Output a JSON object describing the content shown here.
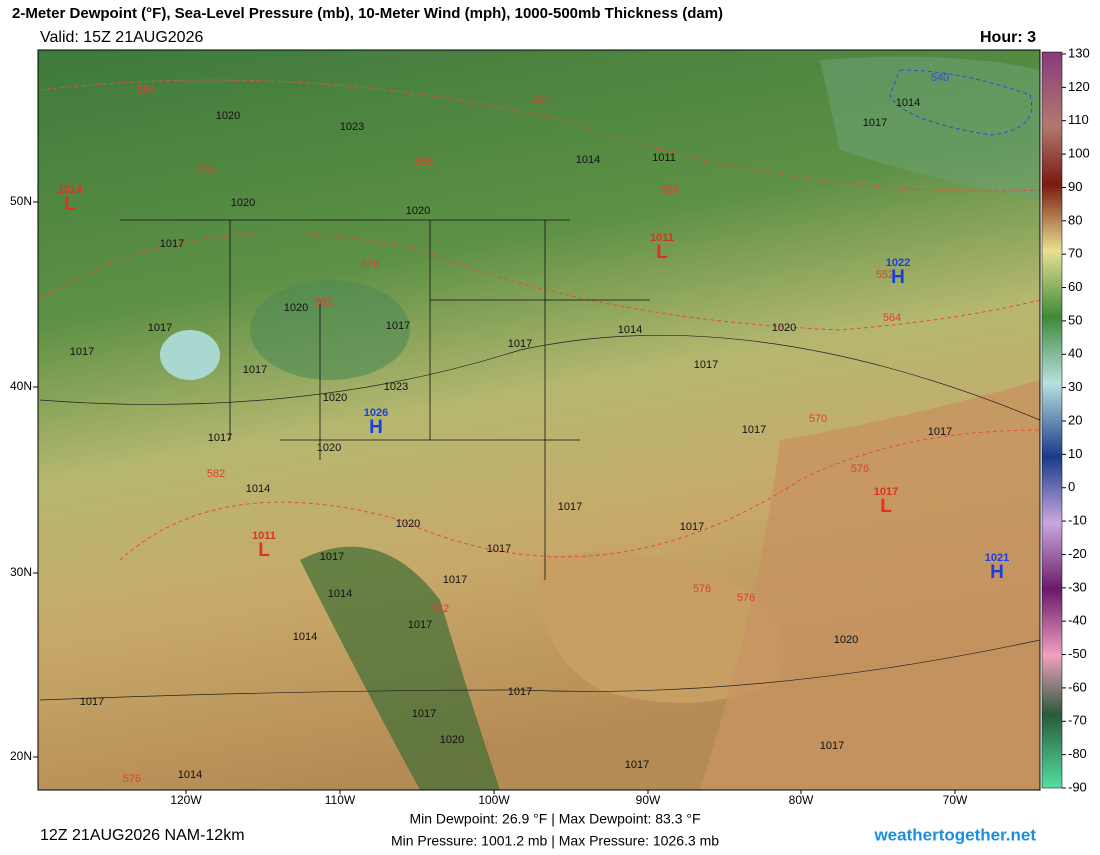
{
  "header": {
    "title": "2-Meter Dewpoint (°F), Sea-Level Pressure (mb), 10-Meter Wind (mph), 1000-500mb Thickness (dam)",
    "valid": "Valid: 15Z 21AUG2026",
    "hour": "Hour: 3"
  },
  "map": {
    "lat_labels": [
      "50N",
      "40N",
      "30N",
      "20N"
    ],
    "lon_labels": [
      "120W",
      "110W",
      "100W",
      "90W",
      "80W",
      "70W"
    ],
    "pressure_centers": [
      {
        "letter": "L",
        "value": "1014"
      },
      {
        "letter": "L",
        "value": "1011"
      },
      {
        "letter": "L",
        "value": "1011"
      },
      {
        "letter": "H",
        "value": "1022"
      },
      {
        "letter": "H",
        "value": "1026"
      },
      {
        "letter": "L",
        "value": "1017"
      },
      {
        "letter": "H",
        "value": "1021"
      }
    ],
    "isobar_labels": [
      "1020",
      "1023",
      "1014",
      "1011",
      "1017",
      "1020",
      "1017",
      "1020",
      "1020",
      "1017",
      "1017",
      "1017",
      "1014",
      "1017",
      "1017",
      "1020",
      "1023",
      "1020",
      "1017",
      "1017",
      "1014",
      "1020",
      "1017",
      "1017",
      "1017",
      "1017",
      "1020",
      "1017",
      "1017",
      "1017",
      "1014",
      "1014",
      "1017",
      "1020",
      "1017",
      "1017",
      "1017",
      "1020",
      "1014",
      "1017",
      "1017",
      "1014"
    ],
    "thickness_labels": [
      "564",
      "552",
      "558",
      "576",
      "558",
      "576",
      "582",
      "564",
      "552",
      "570",
      "576",
      "582",
      "582",
      "576",
      "576",
      "576",
      "540"
    ]
  },
  "colorbar": {
    "ticks": [
      130,
      120,
      110,
      100,
      90,
      80,
      70,
      60,
      50,
      40,
      30,
      20,
      10,
      0,
      -10,
      -20,
      -30,
      -40,
      -50,
      -60,
      -70,
      -80,
      -90
    ]
  },
  "footer": {
    "run": "12Z 21AUG2026 NAM-12km",
    "dewpoint": "Min Dewpoint: 26.9 °F | Max Dewpoint: 83.3 °F",
    "pressure": "Min Pressure: 1001.2 mb | Max Pressure: 1026.3 mb",
    "site": "weathertogether.net"
  }
}
